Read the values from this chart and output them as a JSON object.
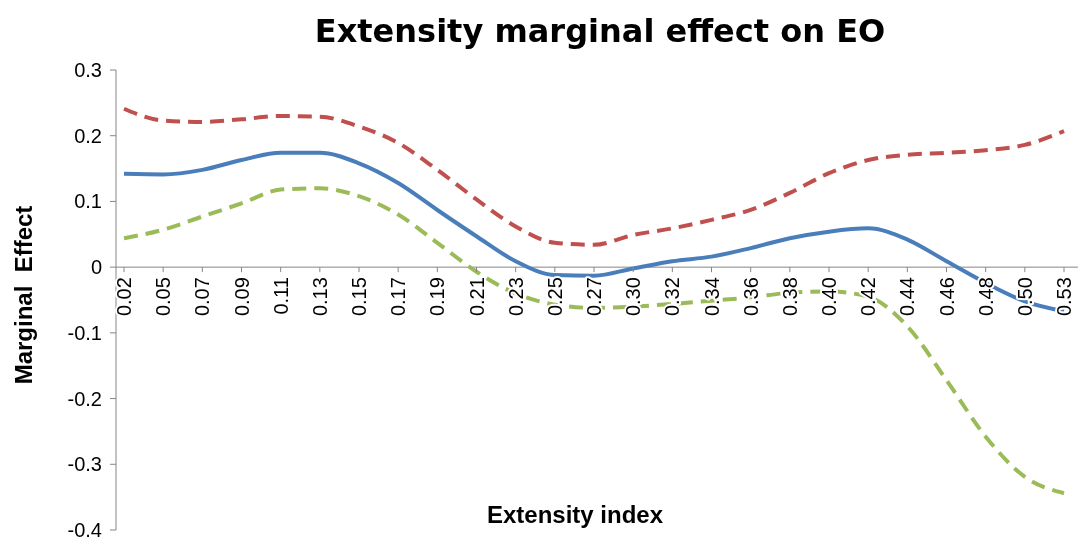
{
  "chart_data": {
    "type": "line",
    "title": "Extensity marginal effect on EO",
    "xlabel": "Extensity index",
    "ylabel": "Marginal  Effect",
    "categories": [
      "0.02",
      "0.05",
      "0.07",
      "0.09",
      "0.11",
      "0.13",
      "0.15",
      "0.17",
      "0.19",
      "0.21",
      "0.23",
      "0.25",
      "0.27",
      "0.30",
      "0.32",
      "0.34",
      "0.36",
      "0.38",
      "0.40",
      "0.42",
      "0.44",
      "0.46",
      "0.48",
      "0.50",
      "0.53"
    ],
    "series": [
      {
        "color": "#4a7ebb",
        "line_style": "solid",
        "values": [
          0.142,
          0.141,
          0.148,
          0.163,
          0.174,
          0.174,
          0.158,
          0.128,
          0.087,
          0.047,
          0.009,
          -0.012,
          -0.013,
          -0.002,
          0.009,
          0.016,
          0.029,
          0.044,
          0.054,
          0.059,
          0.042,
          0.009,
          -0.024,
          -0.052,
          -0.067
        ]
      },
      {
        "color": "#c0504d",
        "line_style": "dashed",
        "values": [
          0.241,
          0.223,
          0.221,
          0.225,
          0.23,
          0.229,
          0.214,
          0.189,
          0.148,
          0.103,
          0.062,
          0.037,
          0.034,
          0.049,
          0.059,
          0.072,
          0.087,
          0.113,
          0.143,
          0.163,
          0.171,
          0.174,
          0.178,
          0.186,
          0.207
        ]
      },
      {
        "color": "#9bbb59",
        "line_style": "dashed",
        "values": [
          0.044,
          0.057,
          0.077,
          0.097,
          0.118,
          0.12,
          0.108,
          0.08,
          0.037,
          -0.007,
          -0.04,
          -0.057,
          -0.062,
          -0.06,
          -0.056,
          -0.051,
          -0.046,
          -0.039,
          -0.037,
          -0.045,
          -0.09,
          -0.172,
          -0.258,
          -0.319,
          -0.344
        ]
      }
    ],
    "ylim": [
      -0.4,
      0.3
    ],
    "yticks": [
      0.3,
      0.2,
      0.1,
      0,
      -0.1,
      -0.2,
      -0.3,
      -0.4
    ],
    "grid": false,
    "marker": "none"
  }
}
